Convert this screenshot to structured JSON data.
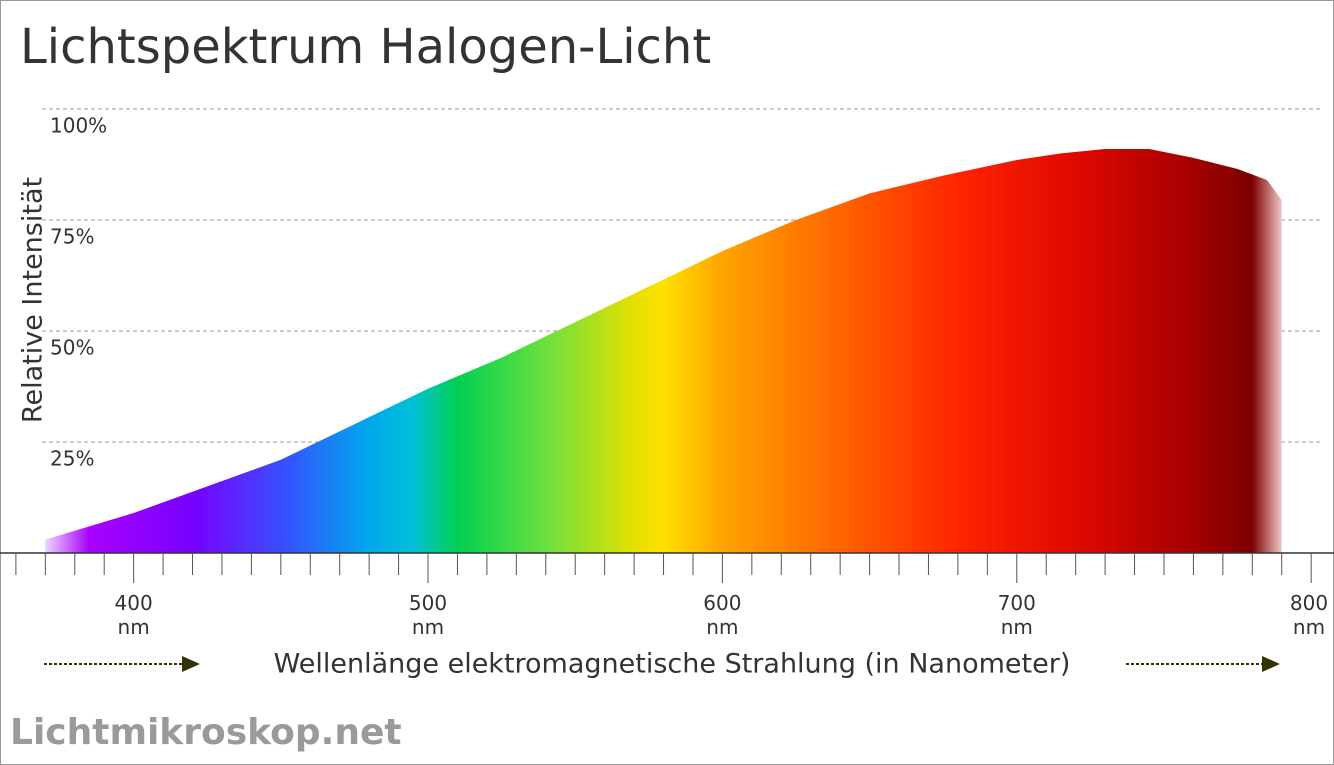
{
  "chart_data": {
    "type": "area",
    "title": "Lichtspektrum Halogen-Licht",
    "y_label": "Relative Intensität",
    "x_label": "Wellenlänge elektromagnetische Strahlung (in Nanometer)",
    "footer": "Lichtmikroskop.net",
    "x": [
      370,
      380,
      390,
      400,
      425,
      450,
      475,
      500,
      525,
      550,
      575,
      600,
      625,
      650,
      675,
      700,
      715,
      730,
      745,
      760,
      775,
      785,
      790
    ],
    "values": [
      3,
      5,
      7,
      9,
      15,
      21,
      29,
      37,
      44,
      52,
      60,
      68,
      75,
      81,
      85,
      88.5,
      90,
      91,
      91,
      89,
      86.5,
      84,
      79.5
    ],
    "xlim": [
      358,
      803
    ],
    "ylim": [
      0,
      100
    ],
    "xticks": [
      {
        "value": 400,
        "label": "400 nm"
      },
      {
        "value": 500,
        "label": "500 nm"
      },
      {
        "value": 600,
        "label": "600 nm"
      },
      {
        "value": 700,
        "label": "700 nm"
      },
      {
        "value": 800,
        "label": "800 nm"
      }
    ],
    "xminorticks": [
      360,
      370,
      380,
      390,
      410,
      420,
      430,
      440,
      450,
      460,
      470,
      480,
      490,
      510,
      520,
      530,
      540,
      550,
      560,
      570,
      580,
      590,
      610,
      620,
      630,
      640,
      650,
      660,
      670,
      680,
      690,
      710,
      720,
      730,
      740,
      750,
      760,
      770,
      780,
      790
    ],
    "yticks": [
      {
        "value": 25,
        "label": "25%"
      },
      {
        "value": 50,
        "label": "50%"
      },
      {
        "value": 75,
        "label": "75%"
      },
      {
        "value": 100,
        "label": "100%"
      }
    ],
    "grid": true,
    "color_stops": [
      {
        "value": 370,
        "color": "#ecd4ff"
      },
      {
        "value": 385,
        "color": "#a800ff"
      },
      {
        "value": 420,
        "color": "#7800ff"
      },
      {
        "value": 450,
        "color": "#3a4cff"
      },
      {
        "value": 480,
        "color": "#00a8ec"
      },
      {
        "value": 495,
        "color": "#00c0d8"
      },
      {
        "value": 510,
        "color": "#00d050"
      },
      {
        "value": 540,
        "color": "#6ce040"
      },
      {
        "value": 570,
        "color": "#e4e000"
      },
      {
        "value": 580,
        "color": "#ffe000"
      },
      {
        "value": 600,
        "color": "#ffa400"
      },
      {
        "value": 640,
        "color": "#ff6400"
      },
      {
        "value": 680,
        "color": "#ff2400"
      },
      {
        "value": 720,
        "color": "#e00800"
      },
      {
        "value": 760,
        "color": "#a40000"
      },
      {
        "value": 780,
        "color": "#7c0000"
      },
      {
        "value": 790,
        "color": "#f2c8c8"
      }
    ]
  }
}
